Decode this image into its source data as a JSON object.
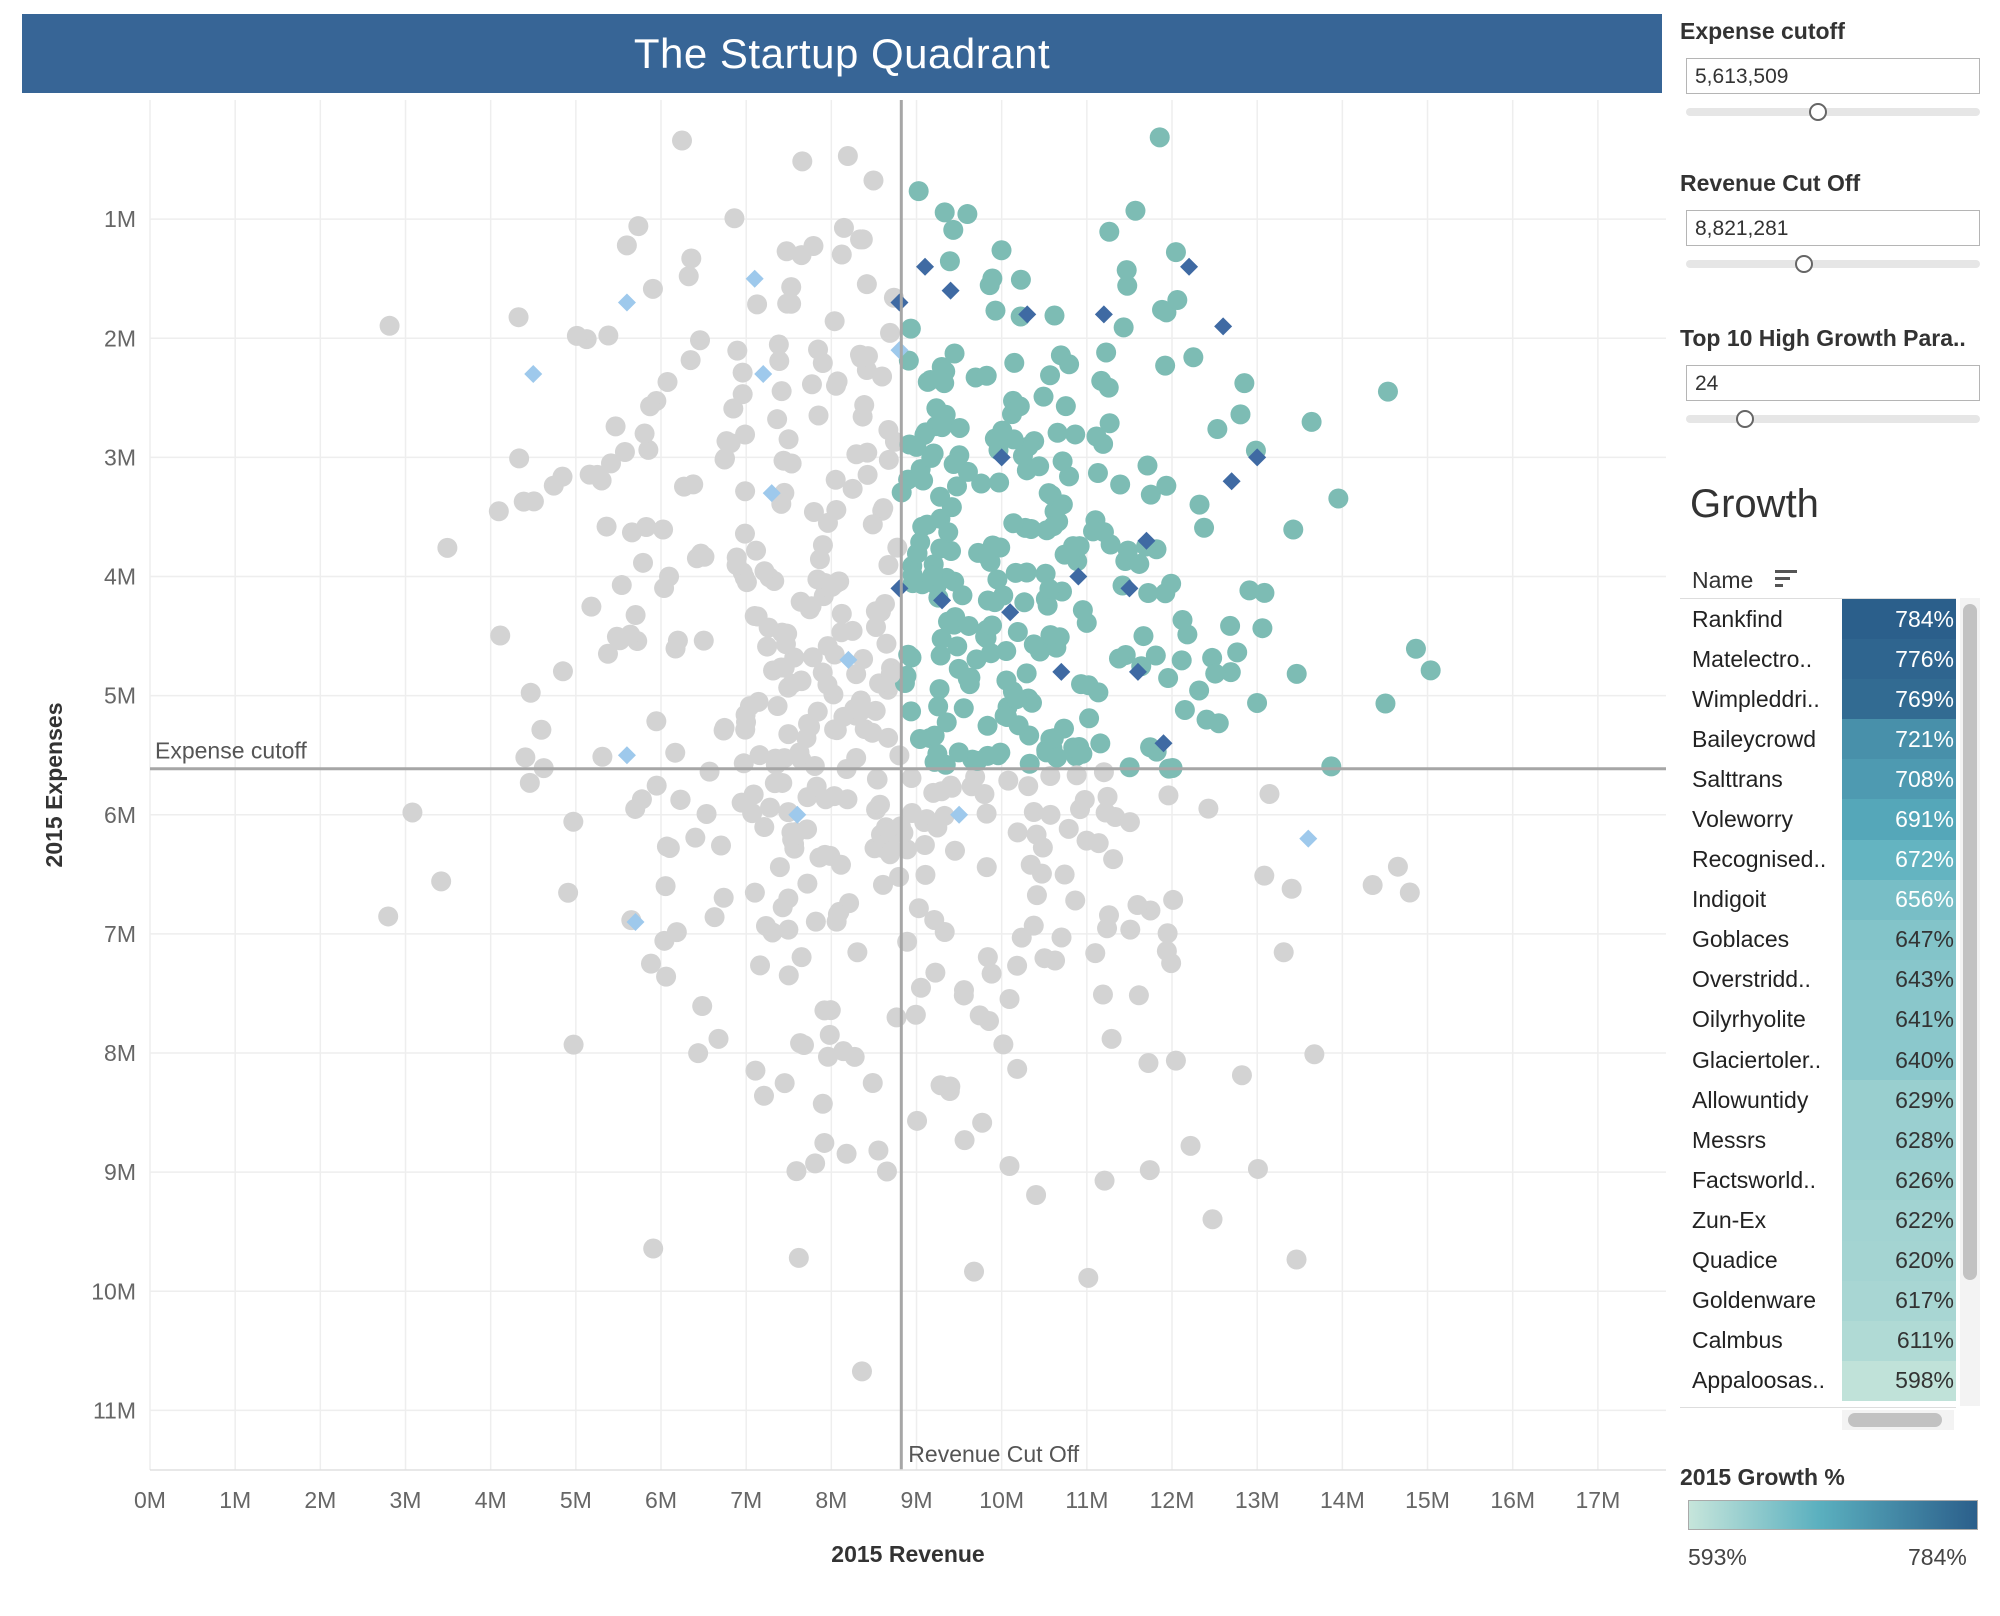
{
  "title": "The Startup Quadrant",
  "parameters": [
    {
      "label": "Expense cutoff",
      "value": "5,613,509",
      "slider": 0.45
    },
    {
      "label": "Revenue Cut Off",
      "value": "8,821,281",
      "slider": 0.4
    },
    {
      "label": "Top 10 High Growth Para..",
      "value": "24",
      "slider": 0.2
    }
  ],
  "growth_table": {
    "title": "Growth",
    "column_header": "Name",
    "rows": [
      {
        "name": "Rankfind",
        "value": "784%",
        "growth": 784
      },
      {
        "name": "Matelectro..",
        "value": "776%",
        "growth": 776
      },
      {
        "name": "Wimpleddri..",
        "value": "769%",
        "growth": 769
      },
      {
        "name": "Baileycrowd",
        "value": "721%",
        "growth": 721
      },
      {
        "name": "Salttrans",
        "value": "708%",
        "growth": 708
      },
      {
        "name": "Voleworry",
        "value": "691%",
        "growth": 691
      },
      {
        "name": "Recognised..",
        "value": "672%",
        "growth": 672
      },
      {
        "name": "Indigoit",
        "value": "656%",
        "growth": 656
      },
      {
        "name": "Goblaces",
        "value": "647%",
        "growth": 647
      },
      {
        "name": "Overstridd..",
        "value": "643%",
        "growth": 643
      },
      {
        "name": "Oilyrhyolite",
        "value": "641%",
        "growth": 641
      },
      {
        "name": "Glaciertoler..",
        "value": "640%",
        "growth": 640
      },
      {
        "name": "Allowuntidy",
        "value": "629%",
        "growth": 629
      },
      {
        "name": "Messrs",
        "value": "628%",
        "growth": 628
      },
      {
        "name": "Factsworld..",
        "value": "626%",
        "growth": 626
      },
      {
        "name": "Zun-Ex",
        "value": "622%",
        "growth": 622
      },
      {
        "name": "Quadice",
        "value": "620%",
        "growth": 620
      },
      {
        "name": "Goldenware",
        "value": "617%",
        "growth": 617
      },
      {
        "name": "Calmbus",
        "value": "611%",
        "growth": 611
      },
      {
        "name": "Appaloosas..",
        "value": "598%",
        "growth": 598
      }
    ]
  },
  "legend": {
    "title": "2015 Growth %",
    "min": "593%",
    "max": "784%",
    "colors": [
      "#c6e5db",
      "#5bb0bf",
      "#2b5f8b"
    ]
  },
  "icons": {
    "sort": "sort-descending-icon"
  },
  "chart_data": {
    "type": "scatter",
    "xlabel": "2015 Revenue",
    "ylabel": "2015 Expenses",
    "x_ticks": [
      "0M",
      "1M",
      "2M",
      "3M",
      "4M",
      "5M",
      "6M",
      "7M",
      "8M",
      "9M",
      "10M",
      "11M",
      "12M",
      "13M",
      "14M",
      "15M",
      "16M",
      "17M"
    ],
    "y_ticks": [
      "1M",
      "2M",
      "3M",
      "4M",
      "5M",
      "6M",
      "7M",
      "8M",
      "9M",
      "10M",
      "11M"
    ],
    "xlim": [
      0,
      17.8
    ],
    "ylim": [
      0,
      11.5
    ],
    "y_reversed": true,
    "reference_lines": [
      {
        "label": "Expense cutoff",
        "axis": "y",
        "value": 5.6135
      },
      {
        "label": "Revenue Cut Off",
        "axis": "x",
        "value": 8.8213
      }
    ],
    "colors": {
      "other": "#d3d3d3",
      "quadrant": "#7dbcb4",
      "top_growth_in": "#3f6aa3",
      "top_growth_out": "#9ec9ec"
    },
    "highlighted_points": {
      "top_growth_in": [
        [
          8.8,
          1.7
        ],
        [
          9.1,
          1.4
        ],
        [
          9.4,
          1.6
        ],
        [
          10.0,
          3.0
        ],
        [
          10.3,
          1.8
        ],
        [
          11.2,
          1.8
        ],
        [
          12.2,
          1.4
        ],
        [
          12.6,
          1.9
        ],
        [
          8.8,
          4.1
        ],
        [
          9.3,
          4.2
        ],
        [
          10.1,
          4.3
        ],
        [
          10.9,
          4.0
        ],
        [
          11.7,
          3.7
        ],
        [
          11.5,
          4.1
        ],
        [
          12.7,
          3.2
        ],
        [
          13.0,
          3.0
        ],
        [
          10.7,
          4.8
        ],
        [
          11.6,
          4.8
        ],
        [
          11.9,
          5.4
        ]
      ],
      "top_growth_out": [
        [
          5.6,
          1.7
        ],
        [
          7.1,
          1.5
        ],
        [
          4.5,
          2.3
        ],
        [
          7.2,
          2.3
        ],
        [
          8.8,
          2.1
        ],
        [
          7.3,
          3.3
        ],
        [
          8.2,
          4.7
        ],
        [
          5.6,
          5.5
        ],
        [
          7.6,
          6.0
        ],
        [
          9.5,
          6.0
        ],
        [
          13.6,
          6.2
        ],
        [
          5.7,
          6.9
        ]
      ]
    },
    "cloud_summary": {
      "point_count": 713,
      "x_range": [
        1.4,
        16.9
      ],
      "y_range": [
        0.2,
        10.9
      ]
    }
  }
}
